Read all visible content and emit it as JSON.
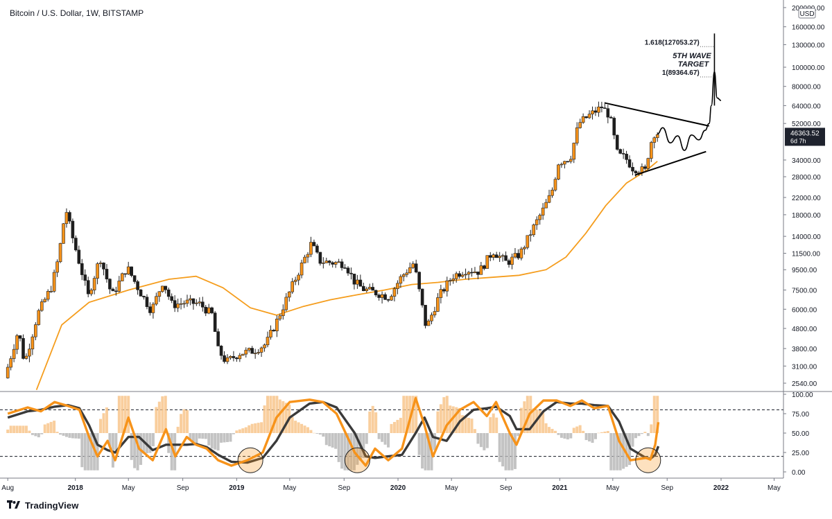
{
  "header": {
    "title": "Bitcoin / U.S. Dollar, 1W, BITSTAMP"
  },
  "footer": {
    "brand": "TradingView",
    "logo_icon": "tradingview-logo-icon"
  },
  "colors": {
    "bull": "#f7931a",
    "bear": "#1e1e1e",
    "ma": "#f59d1d",
    "osc_fast": "#f7931a",
    "osc_slow": "#3a3a3a",
    "hist_pos": "#f8c58c",
    "hist_neg": "#b8b8b8",
    "price_badge": "#1e222d"
  },
  "chart_data": [
    {
      "type": "candlestick",
      "title": "Bitcoin / U.S. Dollar, 1W, BITSTAMP",
      "y_scale": "log",
      "ylim": [
        2300,
        200000
      ],
      "currency_label": "USD",
      "y_ticks": [
        "200000.00",
        "160000.00",
        "130000.00",
        "100000.00",
        "80000.00",
        "64000.00",
        "52000.00",
        "34000.00",
        "28000.00",
        "22000.00",
        "18000.00",
        "14000.00",
        "11500.00",
        "9500.00",
        "7500.00",
        "6000.00",
        "4800.00",
        "3800.00",
        "3100.00",
        "2540.00"
      ],
      "x_ticks": [
        "Aug",
        "2018",
        "May",
        "Sep",
        "2019",
        "May",
        "Sep",
        "2020",
        "May",
        "Sep",
        "2021",
        "May",
        "Sep",
        "2022",
        "May"
      ],
      "last_price": {
        "value": "46363.52",
        "countdown": "6d 7h"
      },
      "price_path": [
        [
          "2017-08-01",
          2700
        ],
        [
          "2017-09-01",
          4700
        ],
        [
          "2017-09-15",
          3200
        ],
        [
          "2017-10-15",
          5700
        ],
        [
          "2017-11-15",
          7800
        ],
        [
          "2017-12-01",
          11000
        ],
        [
          "2017-12-17",
          19500
        ],
        [
          "2018-01-01",
          14000
        ],
        [
          "2018-02-06",
          7000
        ],
        [
          "2018-03-05",
          11000
        ],
        [
          "2018-04-01",
          7000
        ],
        [
          "2018-05-05",
          9800
        ],
        [
          "2018-06-01",
          7500
        ],
        [
          "2018-06-29",
          5900
        ],
        [
          "2018-07-25",
          8300
        ],
        [
          "2018-08-15",
          6300
        ],
        [
          "2018-09-15",
          6500
        ],
        [
          "2018-10-15",
          6400
        ],
        [
          "2018-11-15",
          5600
        ],
        [
          "2018-11-25",
          3800
        ],
        [
          "2018-12-15",
          3250
        ],
        [
          "2019-01-15",
          3600
        ],
        [
          "2019-02-15",
          3700
        ],
        [
          "2019-03-15",
          4000
        ],
        [
          "2019-04-10",
          5300
        ],
        [
          "2019-05-15",
          8000
        ],
        [
          "2019-06-26",
          12900
        ],
        [
          "2019-07-15",
          10500
        ],
        [
          "2019-08-15",
          10300
        ],
        [
          "2019-09-10",
          10200
        ],
        [
          "2019-10-01",
          8300
        ],
        [
          "2019-10-20",
          7600
        ],
        [
          "2019-11-25",
          7200
        ],
        [
          "2019-12-18",
          6900
        ],
        [
          "2020-01-15",
          8700
        ],
        [
          "2020-02-13",
          10300
        ],
        [
          "2020-03-12",
          4800
        ],
        [
          "2020-04-10",
          7000
        ],
        [
          "2020-05-10",
          8800
        ],
        [
          "2020-06-10",
          9500
        ],
        [
          "2020-07-10",
          9300
        ],
        [
          "2020-08-10",
          11800
        ],
        [
          "2020-09-10",
          10300
        ],
        [
          "2020-10-10",
          11400
        ],
        [
          "2020-11-10",
          15600
        ],
        [
          "2020-12-01",
          19000
        ],
        [
          "2020-12-20",
          23000
        ],
        [
          "2021-01-05",
          33000
        ],
        [
          "2021-02-01",
          35000
        ],
        [
          "2021-02-20",
          52000
        ],
        [
          "2021-03-15",
          57000
        ],
        [
          "2021-04-13",
          63000
        ],
        [
          "2021-05-01",
          57000
        ],
        [
          "2021-05-19",
          36000
        ],
        [
          "2021-06-05",
          35000
        ],
        [
          "2021-06-22",
          31000
        ],
        [
          "2021-07-20",
          30000
        ],
        [
          "2021-08-01",
          41000
        ],
        [
          "2021-08-10",
          46363
        ]
      ],
      "series": [
        {
          "name": "",
          "kind": "moving-average",
          "points": [
            [
              "2017-10-05",
              2350
            ],
            [
              "2017-12-01",
              5000
            ],
            [
              "2018-02-01",
              6500
            ],
            [
              "2018-05-01",
              7500
            ],
            [
              "2018-08-01",
              8500
            ],
            [
              "2018-10-01",
              8800
            ],
            [
              "2018-12-01",
              7700
            ],
            [
              "2019-02-01",
              6100
            ],
            [
              "2019-04-01",
              5600
            ],
            [
              "2019-06-01",
              6200
            ],
            [
              "2019-08-01",
              6700
            ],
            [
              "2019-10-01",
              7100
            ],
            [
              "2019-12-01",
              7500
            ],
            [
              "2020-02-01",
              8000
            ],
            [
              "2020-04-01",
              8200
            ],
            [
              "2020-06-01",
              8500
            ],
            [
              "2020-08-01",
              8700
            ],
            [
              "2020-10-01",
              8900
            ],
            [
              "2020-12-01",
              9500
            ],
            [
              "2021-01-15",
              11000
            ],
            [
              "2021-03-01",
              14500
            ],
            [
              "2021-04-15",
              20000
            ],
            [
              "2021-06-01",
              26000
            ],
            [
              "2021-07-15",
              30000
            ],
            [
              "2021-08-10",
              33500
            ]
          ]
        }
      ],
      "projection": [
        [
          "2021-08-10",
          46000
        ],
        [
          "2021-08-22",
          49500
        ],
        [
          "2021-09-08",
          41500
        ],
        [
          "2021-09-25",
          45000
        ],
        [
          "2021-10-10",
          38000
        ],
        [
          "2021-10-26",
          45500
        ],
        [
          "2021-11-12",
          43000
        ],
        [
          "2021-11-26",
          48000
        ],
        [
          "2021-12-05",
          52000
        ],
        [
          "2021-12-10",
          64000
        ],
        [
          "2021-12-17",
          95000
        ],
        [
          "2021-12-23",
          70000
        ],
        [
          "2022-01-01",
          68000
        ]
      ],
      "triangle": {
        "upper": [
          [
            "2021-04-13",
            66000
          ],
          [
            "2021-12-05",
            50500
          ]
        ],
        "lower": [
          [
            "2021-06-20",
            28500
          ],
          [
            "2021-11-28",
            37500
          ]
        ]
      },
      "fib_levels": [
        {
          "label": "1.618(127053.27)",
          "value": 127053.27
        },
        {
          "label": "1(89364.67)",
          "value": 89364.67
        }
      ],
      "annotation": {
        "line1": "5TH WAVE",
        "line2": "TARGET"
      }
    },
    {
      "type": "oscillator",
      "ylim": [
        -5,
        102
      ],
      "y_ticks": [
        "100.00",
        "75.00",
        "50.00",
        "25.00",
        "0.00"
      ],
      "levels": [
        80,
        20
      ],
      "fast_path": [
        [
          "2017-08-01",
          75
        ],
        [
          "2017-09-15",
          83
        ],
        [
          "2017-10-15",
          78
        ],
        [
          "2017-11-15",
          90
        ],
        [
          "2017-12-15",
          85
        ],
        [
          "2018-01-10",
          80
        ],
        [
          "2018-02-01",
          45
        ],
        [
          "2018-02-20",
          20
        ],
        [
          "2018-03-15",
          40
        ],
        [
          "2018-04-01",
          15
        ],
        [
          "2018-05-01",
          70
        ],
        [
          "2018-05-25",
          30
        ],
        [
          "2018-06-25",
          15
        ],
        [
          "2018-07-25",
          55
        ],
        [
          "2018-08-15",
          20
        ],
        [
          "2018-09-10",
          45
        ],
        [
          "2018-10-01",
          35
        ],
        [
          "2018-10-25",
          30
        ],
        [
          "2018-11-20",
          15
        ],
        [
          "2018-12-20",
          8
        ],
        [
          "2019-01-25",
          15
        ],
        [
          "2019-03-01",
          25
        ],
        [
          "2019-04-01",
          70
        ],
        [
          "2019-05-01",
          90
        ],
        [
          "2019-06-15",
          93
        ],
        [
          "2019-07-15",
          90
        ],
        [
          "2019-08-15",
          75
        ],
        [
          "2019-09-25",
          25
        ],
        [
          "2019-10-20",
          8
        ],
        [
          "2019-11-10",
          30
        ],
        [
          "2019-12-10",
          15
        ],
        [
          "2020-01-10",
          30
        ],
        [
          "2020-02-10",
          95
        ],
        [
          "2020-03-01",
          60
        ],
        [
          "2020-03-20",
          20
        ],
        [
          "2020-04-20",
          60
        ],
        [
          "2020-05-20",
          80
        ],
        [
          "2020-06-20",
          90
        ],
        [
          "2020-07-20",
          72
        ],
        [
          "2020-08-10",
          90
        ],
        [
          "2020-09-10",
          50
        ],
        [
          "2020-09-25",
          35
        ],
        [
          "2020-10-25",
          75
        ],
        [
          "2020-11-25",
          92
        ],
        [
          "2020-12-25",
          92
        ],
        [
          "2021-01-25",
          85
        ],
        [
          "2021-02-20",
          92
        ],
        [
          "2021-03-20",
          82
        ],
        [
          "2021-04-20",
          85
        ],
        [
          "2021-05-15",
          40
        ],
        [
          "2021-06-10",
          15
        ],
        [
          "2021-07-15",
          18
        ],
        [
          "2021-07-25",
          16
        ],
        [
          "2021-08-05",
          35
        ],
        [
          "2021-08-12",
          64
        ]
      ],
      "slow_path": [
        [
          "2017-08-01",
          70
        ],
        [
          "2017-09-15",
          78
        ],
        [
          "2017-10-15",
          80
        ],
        [
          "2017-11-15",
          84
        ],
        [
          "2017-12-15",
          86
        ],
        [
          "2018-01-10",
          82
        ],
        [
          "2018-02-01",
          60
        ],
        [
          "2018-02-20",
          35
        ],
        [
          "2018-03-15",
          28
        ],
        [
          "2018-04-01",
          25
        ],
        [
          "2018-05-01",
          45
        ],
        [
          "2018-05-25",
          45
        ],
        [
          "2018-06-25",
          28
        ],
        [
          "2018-07-25",
          35
        ],
        [
          "2018-08-15",
          35
        ],
        [
          "2018-09-10",
          35
        ],
        [
          "2018-10-01",
          36
        ],
        [
          "2018-10-25",
          32
        ],
        [
          "2018-11-20",
          22
        ],
        [
          "2018-12-20",
          13
        ],
        [
          "2019-01-25",
          12
        ],
        [
          "2019-03-01",
          18
        ],
        [
          "2019-04-01",
          40
        ],
        [
          "2019-05-01",
          70
        ],
        [
          "2019-06-15",
          88
        ],
        [
          "2019-07-15",
          90
        ],
        [
          "2019-08-15",
          83
        ],
        [
          "2019-09-25",
          50
        ],
        [
          "2019-10-20",
          20
        ],
        [
          "2019-11-10",
          18
        ],
        [
          "2019-12-10",
          20
        ],
        [
          "2020-01-10",
          22
        ],
        [
          "2020-02-10",
          50
        ],
        [
          "2020-03-01",
          70
        ],
        [
          "2020-03-20",
          45
        ],
        [
          "2020-04-20",
          40
        ],
        [
          "2020-05-20",
          65
        ],
        [
          "2020-06-20",
          80
        ],
        [
          "2020-07-20",
          82
        ],
        [
          "2020-08-10",
          84
        ],
        [
          "2020-09-10",
          72
        ],
        [
          "2020-09-25",
          55
        ],
        [
          "2020-10-25",
          55
        ],
        [
          "2020-11-25",
          78
        ],
        [
          "2020-12-25",
          90
        ],
        [
          "2021-01-25",
          88
        ],
        [
          "2021-02-20",
          88
        ],
        [
          "2021-03-20",
          86
        ],
        [
          "2021-04-20",
          85
        ],
        [
          "2021-05-15",
          65
        ],
        [
          "2021-06-10",
          30
        ],
        [
          "2021-07-15",
          18
        ],
        [
          "2021-07-25",
          17
        ],
        [
          "2021-08-05",
          22
        ],
        [
          "2021-08-12",
          33
        ]
      ],
      "highlight_circles": [
        "2019-02-01",
        "2019-10-01",
        "2021-07-20"
      ]
    }
  ]
}
